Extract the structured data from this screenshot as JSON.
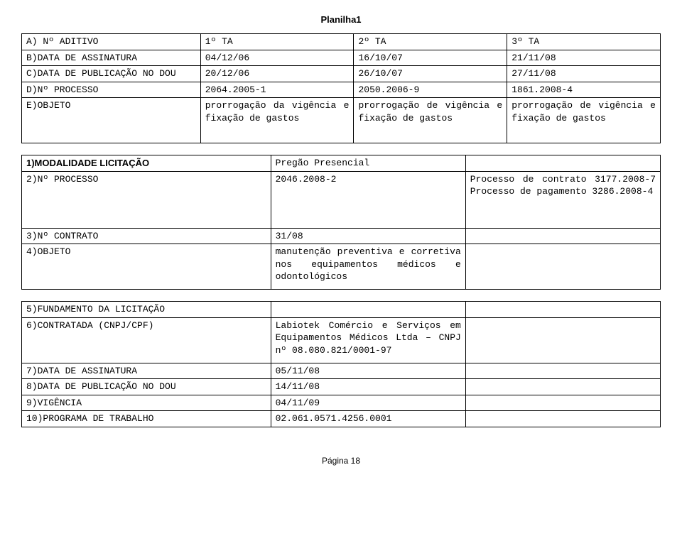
{
  "header": {
    "title": "Planilha1"
  },
  "tableA": {
    "rows": [
      {
        "label": "A) Nº ADITIVO",
        "c1": "1º TA",
        "c2": "2º TA",
        "c3": "3º TA"
      },
      {
        "label": "B)DATA DE ASSINATURA",
        "c1": "04/12/06",
        "c2": "16/10/07",
        "c3": "21/11/08"
      },
      {
        "label": "C)DATA DE PUBLICAÇÃO NO DOU",
        "c1": "20/12/06",
        "c2": "26/10/07",
        "c3": "27/11/08"
      },
      {
        "label": "D)Nº PROCESSO",
        "c1": "2064.2005-1",
        "c2": "2050.2006-9",
        "c3": "1861.2008-4"
      },
      {
        "label": "E)OBJETO",
        "c1": "prorrogação da vigência e fixação de gastos",
        "c2": "prorrogação de vigência e fixação de gastos",
        "c3": "prorrogação de vigência e fixação de gastos"
      }
    ]
  },
  "tableB": {
    "rows": [
      {
        "label": "1)MODALIDADE LICITAÇÃO",
        "c1": "Pregão Presencial",
        "c2": ""
      },
      {
        "label": "2)Nº PROCESSO",
        "c1": "2046.2008-2",
        "c2": "Processo de contrato 3177.2008-7            Processo de pagamento 3286.2008-4"
      },
      {
        "label": "3)Nº CONTRATO",
        "c1": "31/08",
        "c2": ""
      },
      {
        "label": "4)OBJETO",
        "c1": "manutenção preventiva e corretiva nos equipamentos médicos e odontológicos",
        "c2": ""
      }
    ]
  },
  "tableC": {
    "rows": [
      {
        "label": "5)FUNDAMENTO DA LICITAÇÃO",
        "c1": "",
        "c2": ""
      },
      {
        "label": "6)CONTRATADA (CNPJ/CPF)",
        "c1": "Labiotek Comércio e Serviços em Equipamentos Médicos Ltda – CNPJ nº 08.080.821/0001-97",
        "c2": ""
      },
      {
        "label": "7)DATA DE ASSINATURA",
        "c1": "05/11/08",
        "c2": ""
      },
      {
        "label": "8)DATA DE PUBLICAÇÃO NO DOU",
        "c1": "14/11/08",
        "c2": ""
      },
      {
        "label": "9)VIGÊNCIA",
        "c1": "04/11/09",
        "c2": ""
      },
      {
        "label": "10)PROGRAMA DE TRABALHO",
        "c1": "02.061.0571.4256.0001",
        "c2": ""
      }
    ]
  },
  "footer": {
    "text": "Página 18"
  }
}
